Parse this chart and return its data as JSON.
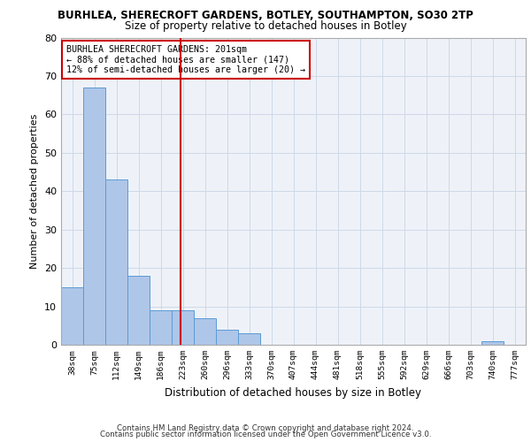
{
  "title_line1": "BURHLEA, SHERECROFT GARDENS, BOTLEY, SOUTHAMPTON, SO30 2TP",
  "title_line2": "Size of property relative to detached houses in Botley",
  "xlabel": "Distribution of detached houses by size in Botley",
  "ylabel": "Number of detached properties",
  "categories": [
    "38sqm",
    "75sqm",
    "112sqm",
    "149sqm",
    "186sqm",
    "223sqm",
    "260sqm",
    "296sqm",
    "333sqm",
    "370sqm",
    "407sqm",
    "444sqm",
    "481sqm",
    "518sqm",
    "555sqm",
    "592sqm",
    "629sqm",
    "666sqm",
    "703sqm",
    "740sqm",
    "777sqm"
  ],
  "values": [
    15,
    67,
    43,
    18,
    9,
    9,
    7,
    4,
    3,
    0,
    0,
    0,
    0,
    0,
    0,
    0,
    0,
    0,
    0,
    1,
    0
  ],
  "bar_color": "#aec6e8",
  "bar_edge_color": "#5b9bd5",
  "grid_color": "#d0d8e8",
  "background_color": "#eef2f8",
  "vline_color": "#cc0000",
  "annotation_title": "BURHLEA SHERECROFT GARDENS: 201sqm",
  "annotation_line1": "← 88% of detached houses are smaller (147)",
  "annotation_line2": "12% of semi-detached houses are larger (20) →",
  "annotation_box_color": "#ffffff",
  "annotation_box_edge": "#cc0000",
  "ylim": [
    0,
    80
  ],
  "yticks": [
    0,
    10,
    20,
    30,
    40,
    50,
    60,
    70,
    80
  ],
  "footer_line1": "Contains HM Land Registry data © Crown copyright and database right 2024.",
  "footer_line2": "Contains public sector information licensed under the Open Government Licence v3.0."
}
